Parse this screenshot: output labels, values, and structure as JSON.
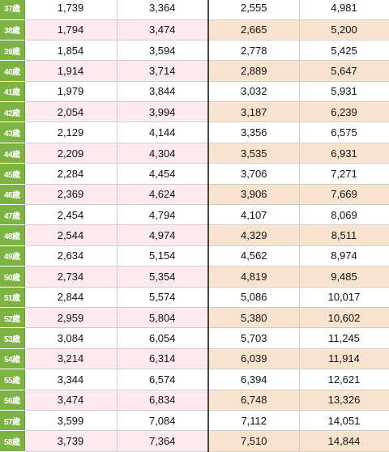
{
  "rows": [
    {
      "age": "37歳",
      "c1": "1,739",
      "c2": "3,364",
      "c3": "2,555",
      "c4": "4,981"
    },
    {
      "age": "38歳",
      "c1": "1,794",
      "c2": "3,474",
      "c3": "2,665",
      "c4": "5,200"
    },
    {
      "age": "39歳",
      "c1": "1,854",
      "c2": "3,594",
      "c3": "2,778",
      "c4": "5,425"
    },
    {
      "age": "40歳",
      "c1": "1,914",
      "c2": "3,714",
      "c3": "2,889",
      "c4": "5,647"
    },
    {
      "age": "41歳",
      "c1": "1,979",
      "c2": "3,844",
      "c3": "3,032",
      "c4": "5,931"
    },
    {
      "age": "42歳",
      "c1": "2,054",
      "c2": "3,994",
      "c3": "3,187",
      "c4": "6,239"
    },
    {
      "age": "43歳",
      "c1": "2,129",
      "c2": "4,144",
      "c3": "3,356",
      "c4": "6,575"
    },
    {
      "age": "44歳",
      "c1": "2,209",
      "c2": "4,304",
      "c3": "3,535",
      "c4": "6,931"
    },
    {
      "age": "45歳",
      "c1": "2,284",
      "c2": "4,454",
      "c3": "3,706",
      "c4": "7,271"
    },
    {
      "age": "46歳",
      "c1": "2,369",
      "c2": "4,624",
      "c3": "3,906",
      "c4": "7,669"
    },
    {
      "age": "47歳",
      "c1": "2,454",
      "c2": "4,794",
      "c3": "4,107",
      "c4": "8,069"
    },
    {
      "age": "48歳",
      "c1": "2,544",
      "c2": "4,974",
      "c3": "4,329",
      "c4": "8,511"
    },
    {
      "age": "49歳",
      "c1": "2,634",
      "c2": "5,154",
      "c3": "4,562",
      "c4": "8,974"
    },
    {
      "age": "50歳",
      "c1": "2,734",
      "c2": "5,354",
      "c3": "4,819",
      "c4": "9,485"
    },
    {
      "age": "51歳",
      "c1": "2,844",
      "c2": "5,574",
      "c3": "5,086",
      "c4": "10,017"
    },
    {
      "age": "52歳",
      "c1": "2,959",
      "c2": "5,804",
      "c3": "5,380",
      "c4": "10,602"
    },
    {
      "age": "53歳",
      "c1": "3,084",
      "c2": "6,054",
      "c3": "5,703",
      "c4": "11,245"
    },
    {
      "age": "54歳",
      "c1": "3,214",
      "c2": "6,314",
      "c3": "6,039",
      "c4": "11,914"
    },
    {
      "age": "55歳",
      "c1": "3,344",
      "c2": "6,574",
      "c3": "6,394",
      "c4": "12,621"
    },
    {
      "age": "56歳",
      "c1": "3,474",
      "c2": "6,834",
      "c3": "6,748",
      "c4": "13,326"
    },
    {
      "age": "57歳",
      "c1": "3,599",
      "c2": "7,084",
      "c3": "7,112",
      "c4": "14,051"
    },
    {
      "age": "58歳",
      "c1": "3,739",
      "c2": "7,364",
      "c3": "7,510",
      "c4": "14,844"
    }
  ],
  "colors": {
    "age_column": "#7cb342",
    "pink_band": "#fde9ee",
    "peach_band": "#f9e3cf"
  }
}
